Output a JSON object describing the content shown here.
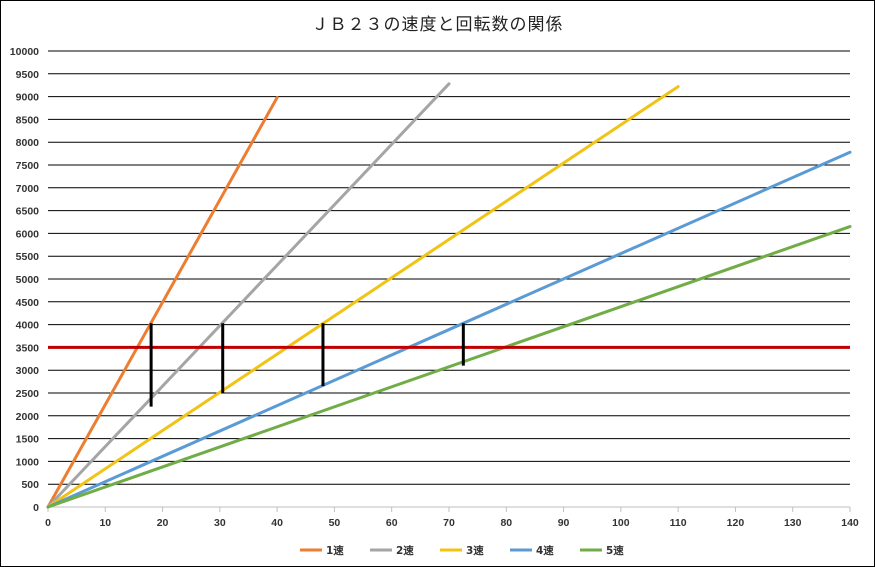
{
  "chart_data": {
    "type": "line",
    "title": "ＪＢ２３の速度と回転数の関係",
    "xlim": [
      0,
      140
    ],
    "ylim": [
      0,
      10000
    ],
    "x_ticks": [
      0,
      10,
      20,
      30,
      40,
      50,
      60,
      70,
      80,
      90,
      100,
      110,
      120,
      130,
      140
    ],
    "y_ticks": [
      0,
      500,
      1000,
      1500,
      2000,
      2500,
      3000,
      3500,
      4000,
      4500,
      5000,
      5500,
      6000,
      6500,
      7000,
      7500,
      8000,
      8500,
      9000,
      9500,
      10000
    ],
    "grid": "horizontal",
    "legend_position": "bottom",
    "series": [
      {
        "name": "1速",
        "color": "#ed7d31",
        "x": [
          0,
          40
        ],
        "y": [
          0,
          8980
        ]
      },
      {
        "name": "2速",
        "color": "#a5a5a5",
        "x": [
          0,
          70
        ],
        "y": [
          0,
          9280
        ]
      },
      {
        "name": "3速",
        "color": "#f2c314",
        "x": [
          0,
          110
        ],
        "y": [
          0,
          9220
        ]
      },
      {
        "name": "4速",
        "color": "#5b9bd5",
        "x": [
          0,
          140
        ],
        "y": [
          0,
          7780
        ]
      },
      {
        "name": "5速",
        "color": "#70ad47",
        "x": [
          0,
          140
        ],
        "y": [
          0,
          6150
        ]
      }
    ],
    "reference_line": {
      "y": 3500,
      "color": "#c00000"
    },
    "shift_markers": [
      {
        "x": 18,
        "y_from": 2200,
        "y_to": 4030
      },
      {
        "x": 30.5,
        "y_from": 2500,
        "y_to": 4030
      },
      {
        "x": 48,
        "y_from": 2650,
        "y_to": 4030
      },
      {
        "x": 72.5,
        "y_from": 3100,
        "y_to": 4030
      }
    ]
  }
}
